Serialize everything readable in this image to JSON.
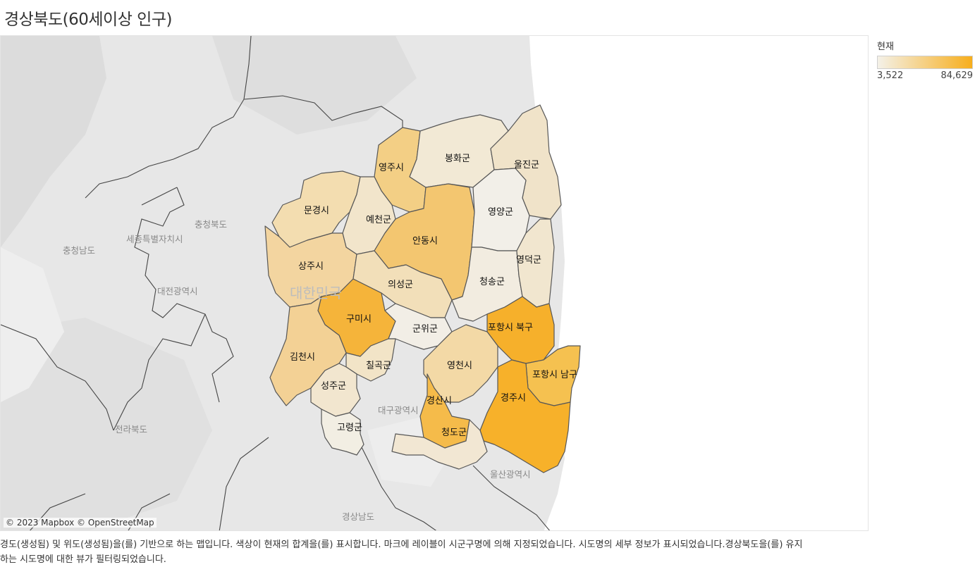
{
  "title": "경상북도(60세이상 인구)",
  "legend": {
    "title": "현재",
    "min": "3,522",
    "max": "84,629",
    "color_min": "#f4f1e8",
    "color_max": "#f7ae1c"
  },
  "attribution": "© 2023 Mapbox © OpenStreetMap",
  "caption": "경도(생성됨) 및 위도(생성됨)을(를) 기반으로 하는 맵입니다. 색상이 현재의 합계을(를) 표시합니다. 마크에 레이블이 시군구명에 의해 지정되었습니다. 시도명의 세부 정보가 표시되었습니다.경상북도을(를) 유지하는 시도명에 대한 뷰가 필터링되었습니다.",
  "background_labels": {
    "chungbuk": "충청북도",
    "sejong": "세종특별자치시",
    "chungnam": "충청남도",
    "daejeon": "대전광역시",
    "korea": "대한민국",
    "jeonbuk": "전라북도",
    "daegu": "대구광역시",
    "ulsan": "울산광역시",
    "gyeongnam": "경상남도"
  },
  "regions": {
    "yeongju": {
      "name": "영주시",
      "color": "#f3cf85"
    },
    "bonghwa": {
      "name": "봉화군",
      "color": "#f2e9d5"
    },
    "uljin": {
      "name": "울진군",
      "color": "#f0e3c9"
    },
    "mungyeong": {
      "name": "문경시",
      "color": "#f3ddb0"
    },
    "yecheon": {
      "name": "예천군",
      "color": "#f2e5cb"
    },
    "andong": {
      "name": "안동시",
      "color": "#f3c670"
    },
    "yeongyang": {
      "name": "영양군",
      "color": "#f2efe8"
    },
    "sangju": {
      "name": "상주시",
      "color": "#f3d5a0"
    },
    "uiseong": {
      "name": "의성군",
      "color": "#f2dfb9"
    },
    "cheongsong": {
      "name": "청송군",
      "color": "#f2ece0"
    },
    "yeongdeok": {
      "name": "영덕군",
      "color": "#f1e6cf"
    },
    "gumi": {
      "name": "구미시",
      "color": "#f5b43a"
    },
    "gunwi": {
      "name": "군위군",
      "color": "#f2eee6"
    },
    "pohang_buk": {
      "name": "포항시 북구",
      "color": "#f6b02b"
    },
    "gimcheon": {
      "name": "김천시",
      "color": "#f3d195"
    },
    "chilgok": {
      "name": "칠곡군",
      "color": "#f2e4c7"
    },
    "yeongcheon": {
      "name": "영천시",
      "color": "#f3d9a6"
    },
    "pohang_nam": {
      "name": "포항시 남구",
      "color": "#f5c150"
    },
    "seongju": {
      "name": "성주군",
      "color": "#f2e6cf"
    },
    "gyeongsan": {
      "name": "경산시",
      "color": "#f5bb4a"
    },
    "gyeongju": {
      "name": "경주시",
      "color": "#f7b12a"
    },
    "goryeong": {
      "name": "고령군",
      "color": "#f2eee3"
    },
    "cheongdo": {
      "name": "청도군",
      "color": "#f2e7d3"
    }
  }
}
